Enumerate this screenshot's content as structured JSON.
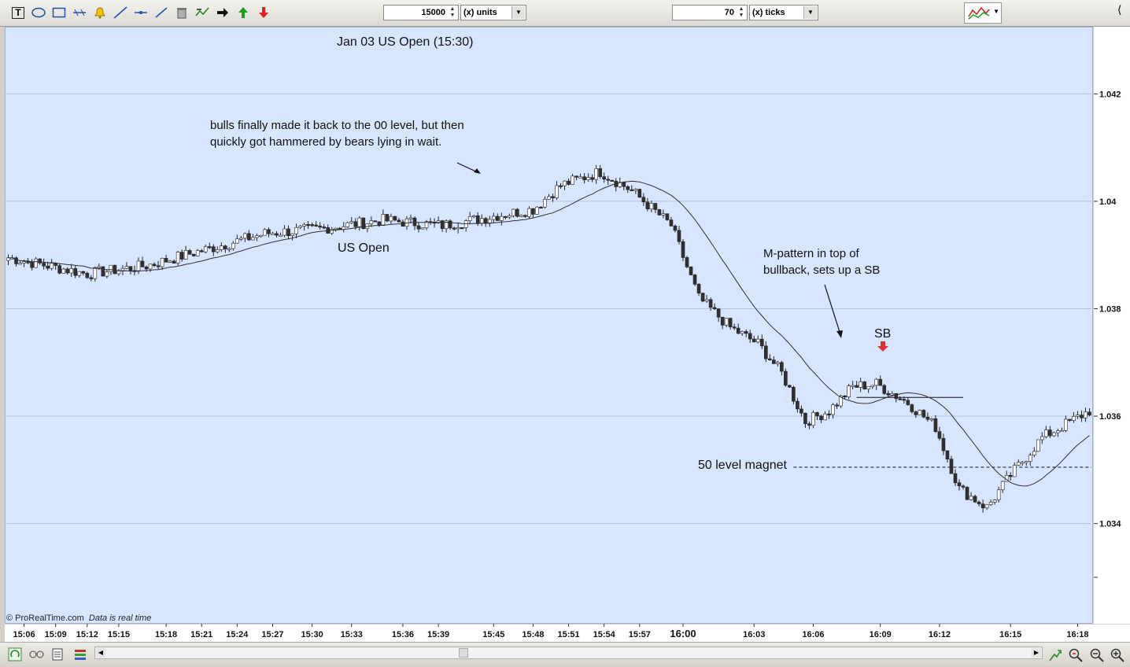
{
  "toolbar": {
    "icons": [
      "text-tool-icon",
      "ellipse-tool-icon",
      "rectangle-tool-icon",
      "fibonacci-tool-icon",
      "alert-bell-icon",
      "trend-line-icon",
      "horizontal-line-icon",
      "ray-line-icon",
      "trash-icon",
      "indicator-icon",
      "arrow-right-icon",
      "arrow-up-green-icon",
      "arrow-down-red-icon"
    ],
    "units_value": "15000",
    "units_label": "(x) units",
    "ticks_value": "70",
    "ticks_label": "(x) ticks"
  },
  "annotations": {
    "title": "Jan 03  US Open (15:30)",
    "bulls_line1": "bulls finally made it back to the 00 level, but then",
    "bulls_line2": "quickly got hammered by bears lying in wait.",
    "us_open": "US Open",
    "mpattern_line1": "M-pattern in top of",
    "mpattern_line2": "bullback, sets up a SB",
    "sb": "SB",
    "magnet": "50 level magnet"
  },
  "watermark": {
    "brand": "© ProRealTime.com",
    "status": "Data is real time"
  },
  "colors": {
    "background": "#d8e5ff",
    "bull": "#ffffff",
    "bear": "#303030",
    "ma": "#303030",
    "signal_arrow": "#e03030"
  },
  "chart_data": {
    "type": "candlestick",
    "title": "Jan 03  US Open (15:30)",
    "y_ticks": [
      1.034,
      1.036,
      1.038,
      1.04,
      1.042
    ],
    "y_tick_labels": [
      "1.034",
      "1.036",
      "1.038",
      "1.04",
      "1.042"
    ],
    "ylim": [
      1.03215,
      1.04325
    ],
    "x_tick_labels": [
      "15:06",
      "15:09",
      "15:12",
      "15:15",
      "15:18",
      "15:21",
      "15:24",
      "15:27",
      "15:30",
      "15:33",
      "15:36",
      "15:39",
      "15:45",
      "15:48",
      "15:51",
      "15:54",
      "15:57",
      "16:00",
      "16:03",
      "16:06",
      "16:09",
      "16:12",
      "16:15",
      "16:18"
    ],
    "x_tick_bar_index": [
      4,
      12,
      20,
      28,
      40,
      49,
      58,
      67,
      77,
      87,
      100,
      109,
      123,
      133,
      142,
      151,
      160,
      171,
      189,
      204,
      221,
      236,
      254,
      271
    ],
    "bar_count": 275,
    "price_anchors": [
      [
        0,
        1.03895
      ],
      [
        20,
        1.03865
      ],
      [
        35,
        1.0388
      ],
      [
        50,
        1.0391
      ],
      [
        65,
        1.0394
      ],
      [
        80,
        1.0395
      ],
      [
        95,
        1.03965
      ],
      [
        110,
        1.03955
      ],
      [
        125,
        1.03975
      ],
      [
        133,
        1.03985
      ],
      [
        140,
        1.0403
      ],
      [
        150,
        1.04055
      ],
      [
        158,
        1.0402
      ],
      [
        168,
        1.03955
      ],
      [
        175,
        1.0382
      ],
      [
        183,
        1.03765
      ],
      [
        190,
        1.03735
      ],
      [
        196,
        1.0368
      ],
      [
        202,
        1.0359
      ],
      [
        208,
        1.0361
      ],
      [
        214,
        1.03655
      ],
      [
        220,
        1.0366
      ],
      [
        228,
        1.03625
      ],
      [
        235,
        1.0358
      ],
      [
        241,
        1.03465
      ],
      [
        248,
        1.0343
      ],
      [
        254,
        1.0349
      ],
      [
        262,
        1.0356
      ],
      [
        274,
        1.0361
      ]
    ],
    "moving_average": {
      "period": 20,
      "label": ""
    },
    "horizontal_lines": [
      {
        "price": 1.03635,
        "style": "solid",
        "from_bar": 215,
        "to_bar": 242
      },
      {
        "price": 1.03505,
        "style": "dashed",
        "from_bar": 199,
        "to_bar": 275
      }
    ],
    "signal": {
      "label": "SB",
      "bar_index": 222,
      "direction": "sell"
    }
  }
}
